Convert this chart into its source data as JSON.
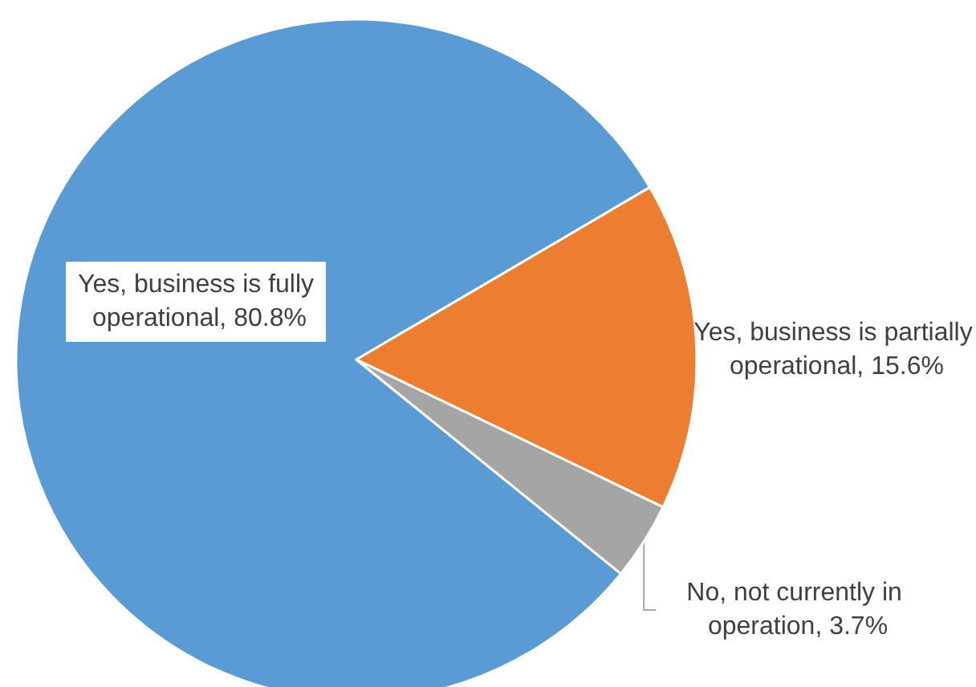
{
  "chart_data": {
    "type": "pie",
    "categories": [
      "Yes, business is fully operational",
      "Yes, business is partially operational",
      "No, not currently in operation"
    ],
    "values": [
      80.8,
      15.6,
      3.7
    ],
    "value_labels": [
      "80.8%",
      "15.6%",
      "3.7%"
    ],
    "colors": [
      "#5b9bd5",
      "#ed7d31",
      "#a5a5a5"
    ],
    "legend": false
  }
}
